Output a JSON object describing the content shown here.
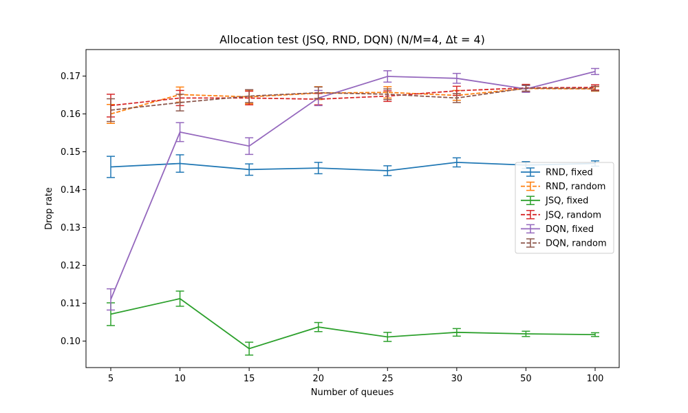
{
  "chart_data": {
    "type": "line",
    "title": "Allocation test (JSQ, RND, DQN) (N/M=4, Δt = 4)",
    "xlabel": "Number of queues",
    "ylabel": "Drop rate",
    "categories": [
      "5",
      "10",
      "15",
      "20",
      "25",
      "30",
      "50",
      "100"
    ],
    "ylim": [
      0.093,
      0.177
    ],
    "yticks": [
      0.1,
      0.11,
      0.12,
      0.13,
      0.14,
      0.15,
      0.16,
      0.17
    ],
    "ytick_labels": [
      "0.10",
      "0.11",
      "0.12",
      "0.13",
      "0.14",
      "0.15",
      "0.16",
      "0.17"
    ],
    "grid": false,
    "legend_position": "center-right",
    "series": [
      {
        "name": "RND, fixed",
        "color": "#1f77b4",
        "dashed": false,
        "values": [
          0.146,
          0.1469,
          0.1453,
          0.1457,
          0.145,
          0.1472,
          0.1465,
          0.1469
        ],
        "errors": [
          0.0028,
          0.0023,
          0.0015,
          0.0015,
          0.0013,
          0.0012,
          0.0009,
          0.0007
        ]
      },
      {
        "name": "RND, random",
        "color": "#ff7f0e",
        "dashed": true,
        "values": [
          0.16,
          0.1651,
          0.1645,
          0.1655,
          0.1657,
          0.1649,
          0.1667,
          0.1666
        ],
        "errors": [
          0.0025,
          0.002,
          0.0018,
          0.0017,
          0.0015,
          0.0013,
          0.0008,
          0.0006
        ]
      },
      {
        "name": "JSQ, fixed",
        "color": "#2ca02c",
        "dashed": false,
        "values": [
          0.1071,
          0.1112,
          0.098,
          0.1037,
          0.1011,
          0.1023,
          0.1019,
          0.1017
        ],
        "errors": [
          0.003,
          0.002,
          0.0017,
          0.0012,
          0.0012,
          0.001,
          0.0007,
          0.0005
        ]
      },
      {
        "name": "JSQ, random",
        "color": "#d62728",
        "dashed": true,
        "values": [
          0.1622,
          0.1642,
          0.1642,
          0.1639,
          0.1647,
          0.1661,
          0.1669,
          0.167
        ],
        "errors": [
          0.003,
          0.002,
          0.0018,
          0.0015,
          0.0014,
          0.0012,
          0.0009,
          0.0007
        ]
      },
      {
        "name": "DQN, fixed",
        "color": "#9467bd",
        "dashed": false,
        "values": [
          0.111,
          0.1552,
          0.1515,
          0.1642,
          0.1699,
          0.1694,
          0.1666,
          0.1712
        ],
        "errors": [
          0.0028,
          0.0025,
          0.0022,
          0.002,
          0.0015,
          0.0013,
          0.0009,
          0.0008
        ]
      },
      {
        "name": "DQN, random",
        "color": "#8c564b",
        "dashed": true,
        "values": [
          0.161,
          0.163,
          0.1647,
          0.1656,
          0.1652,
          0.1642,
          0.1668,
          0.1667
        ],
        "errors": [
          0.003,
          0.0022,
          0.0017,
          0.0015,
          0.0014,
          0.0012,
          0.0008,
          0.0006
        ]
      }
    ]
  }
}
